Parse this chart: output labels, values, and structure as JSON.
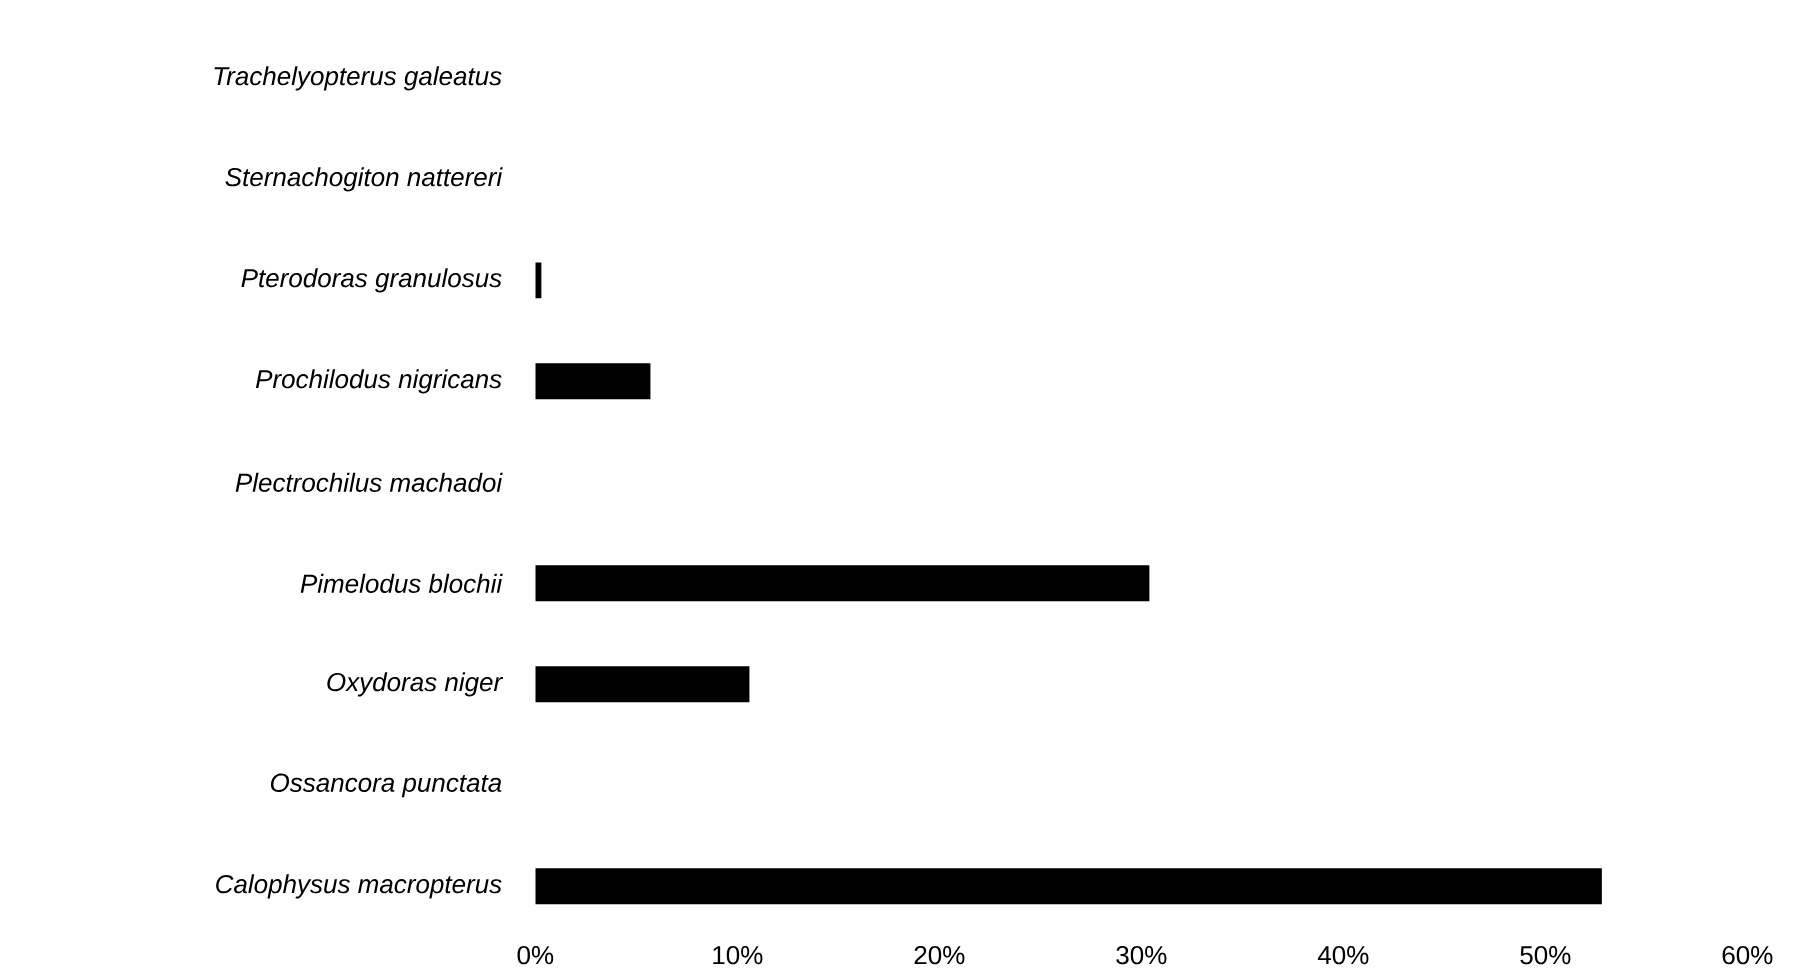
{
  "chart_data": {
    "type": "bar",
    "orientation": "horizontal",
    "categories": [
      "Trachelyopterus galeatus",
      "Sternachogiton nattereri",
      "Pterodoras granulosus",
      "Prochilodus nigricans",
      "Plectrochilus machadoi",
      "Pimelodus blochii",
      "Oxydoras niger",
      "Ossancora punctata",
      "Calophysus macropterus"
    ],
    "values": [
      0,
      0,
      0.3,
      5.7,
      0,
      30.4,
      10.6,
      0,
      52.8
    ],
    "color": "#000000",
    "xlim": [
      0,
      60
    ],
    "xticks": [
      {
        "value": 0,
        "label": "0%"
      },
      {
        "value": 10,
        "label": "10%"
      },
      {
        "value": 20,
        "label": "20%"
      },
      {
        "value": 30,
        "label": "30%"
      },
      {
        "value": 40,
        "label": "40%"
      },
      {
        "value": 50,
        "label": "50%"
      },
      {
        "value": 60,
        "label": "60%"
      }
    ],
    "grid": false
  }
}
